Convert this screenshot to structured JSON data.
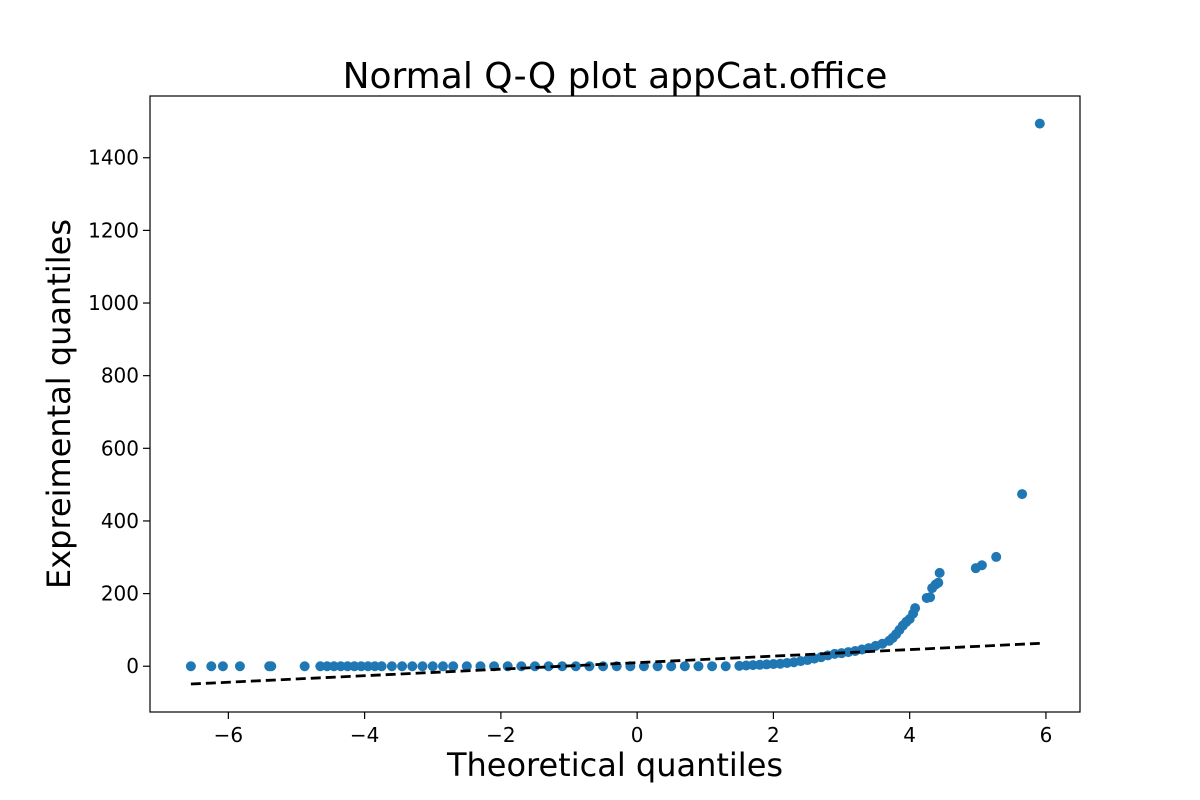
{
  "chart_data": {
    "type": "scatter",
    "title": "Normal Q-Q plot appCat.office",
    "xlabel": "Theoretical quantiles",
    "ylabel": "Expreimental quantiles",
    "xlim": [
      -7.15,
      6.5
    ],
    "ylim": [
      -126,
      1570
    ],
    "x_ticks": [
      {
        "value": -6,
        "label": "−6"
      },
      {
        "value": -4,
        "label": "−4"
      },
      {
        "value": -2,
        "label": "−2"
      },
      {
        "value": 0,
        "label": "0"
      },
      {
        "value": 2,
        "label": "2"
      },
      {
        "value": 4,
        "label": "4"
      },
      {
        "value": 6,
        "label": "6"
      }
    ],
    "y_ticks": [
      {
        "value": 0,
        "label": "0"
      },
      {
        "value": 200,
        "label": "200"
      },
      {
        "value": 400,
        "label": "400"
      },
      {
        "value": 600,
        "label": "600"
      },
      {
        "value": 800,
        "label": "800"
      },
      {
        "value": 1000,
        "label": "1000"
      },
      {
        "value": 1200,
        "label": "1200"
      },
      {
        "value": 1400,
        "label": "1400"
      }
    ],
    "grid": false,
    "marker_color": "#1f77b4",
    "line_color": "#000000",
    "reference_line": {
      "style": "dashed",
      "start": {
        "x": -6.55,
        "y": -49
      },
      "end": {
        "x": 5.91,
        "y": 63
      }
    },
    "points": [
      {
        "x": -6.55,
        "y": 0
      },
      {
        "x": -6.25,
        "y": 0
      },
      {
        "x": -6.08,
        "y": 0
      },
      {
        "x": -5.83,
        "y": 0
      },
      {
        "x": -5.4,
        "y": 0
      },
      {
        "x": -5.37,
        "y": 0
      },
      {
        "x": -4.88,
        "y": 0
      },
      {
        "x": -4.65,
        "y": 0
      },
      {
        "x": -4.55,
        "y": 0
      },
      {
        "x": -4.45,
        "y": 0
      },
      {
        "x": -4.35,
        "y": 0
      },
      {
        "x": -4.25,
        "y": 0
      },
      {
        "x": -4.15,
        "y": 0
      },
      {
        "x": -4.05,
        "y": 0
      },
      {
        "x": -3.95,
        "y": 0
      },
      {
        "x": -3.85,
        "y": 0
      },
      {
        "x": -3.75,
        "y": 0
      },
      {
        "x": -3.6,
        "y": 0
      },
      {
        "x": -3.45,
        "y": 0
      },
      {
        "x": -3.3,
        "y": 0
      },
      {
        "x": -3.15,
        "y": 0
      },
      {
        "x": -3.0,
        "y": 0
      },
      {
        "x": -2.85,
        "y": 0
      },
      {
        "x": -2.7,
        "y": 0
      },
      {
        "x": -2.5,
        "y": 0
      },
      {
        "x": -2.3,
        "y": 0
      },
      {
        "x": -2.1,
        "y": 0
      },
      {
        "x": -1.9,
        "y": 0
      },
      {
        "x": -1.7,
        "y": 0
      },
      {
        "x": -1.5,
        "y": 0
      },
      {
        "x": -1.3,
        "y": 0
      },
      {
        "x": -1.1,
        "y": 0
      },
      {
        "x": -0.9,
        "y": 0
      },
      {
        "x": -0.7,
        "y": 0
      },
      {
        "x": -0.5,
        "y": 0
      },
      {
        "x": -0.3,
        "y": 0
      },
      {
        "x": -0.1,
        "y": 0
      },
      {
        "x": 0.1,
        "y": 0
      },
      {
        "x": 0.3,
        "y": 0
      },
      {
        "x": 0.5,
        "y": 0
      },
      {
        "x": 0.7,
        "y": 0
      },
      {
        "x": 0.9,
        "y": 0
      },
      {
        "x": 1.1,
        "y": 0
      },
      {
        "x": 1.3,
        "y": 0
      },
      {
        "x": 1.5,
        "y": 1
      },
      {
        "x": 1.6,
        "y": 2
      },
      {
        "x": 1.7,
        "y": 3
      },
      {
        "x": 1.8,
        "y": 4
      },
      {
        "x": 1.9,
        "y": 5
      },
      {
        "x": 2.0,
        "y": 6
      },
      {
        "x": 2.1,
        "y": 7
      },
      {
        "x": 2.2,
        "y": 9
      },
      {
        "x": 2.3,
        "y": 11
      },
      {
        "x": 2.4,
        "y": 14
      },
      {
        "x": 2.5,
        "y": 17
      },
      {
        "x": 2.6,
        "y": 21
      },
      {
        "x": 2.7,
        "y": 25
      },
      {
        "x": 2.8,
        "y": 30
      },
      {
        "x": 2.9,
        "y": 34
      },
      {
        "x": 3.0,
        "y": 36
      },
      {
        "x": 3.1,
        "y": 39
      },
      {
        "x": 3.2,
        "y": 42
      },
      {
        "x": 3.3,
        "y": 46
      },
      {
        "x": 3.4,
        "y": 50
      },
      {
        "x": 3.5,
        "y": 56
      },
      {
        "x": 3.6,
        "y": 62
      },
      {
        "x": 3.7,
        "y": 70
      },
      {
        "x": 3.75,
        "y": 78
      },
      {
        "x": 3.8,
        "y": 88
      },
      {
        "x": 3.85,
        "y": 100
      },
      {
        "x": 3.9,
        "y": 112
      },
      {
        "x": 3.95,
        "y": 122
      },
      {
        "x": 4.0,
        "y": 130
      },
      {
        "x": 4.05,
        "y": 145
      },
      {
        "x": 4.08,
        "y": 160
      },
      {
        "x": 4.25,
        "y": 188
      },
      {
        "x": 4.3,
        "y": 190
      },
      {
        "x": 4.33,
        "y": 215
      },
      {
        "x": 4.38,
        "y": 225
      },
      {
        "x": 4.42,
        "y": 230
      },
      {
        "x": 4.44,
        "y": 257
      },
      {
        "x": 4.97,
        "y": 270
      },
      {
        "x": 5.06,
        "y": 278
      },
      {
        "x": 5.27,
        "y": 301
      },
      {
        "x": 5.65,
        "y": 474
      },
      {
        "x": 5.91,
        "y": 1494
      }
    ]
  }
}
